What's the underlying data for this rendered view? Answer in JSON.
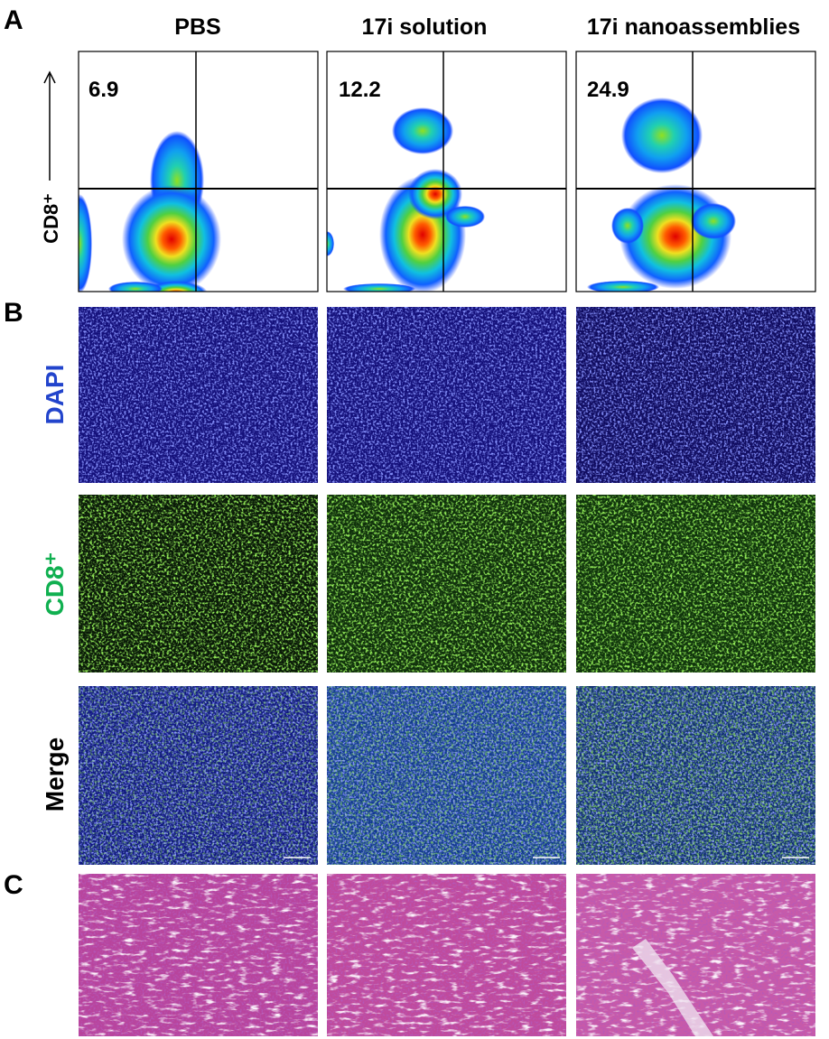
{
  "panels": {
    "labels": [
      "A",
      "B",
      "C"
    ]
  },
  "columns": [
    "PBS",
    "17i solution",
    "17i nanoassemblies"
  ],
  "flow": {
    "axis_label": "CD8⁺",
    "percentages": [
      "6.9",
      "12.2",
      "24.9"
    ]
  },
  "rows": [
    "DAPI",
    "CD8⁺",
    "Merge"
  ]
}
